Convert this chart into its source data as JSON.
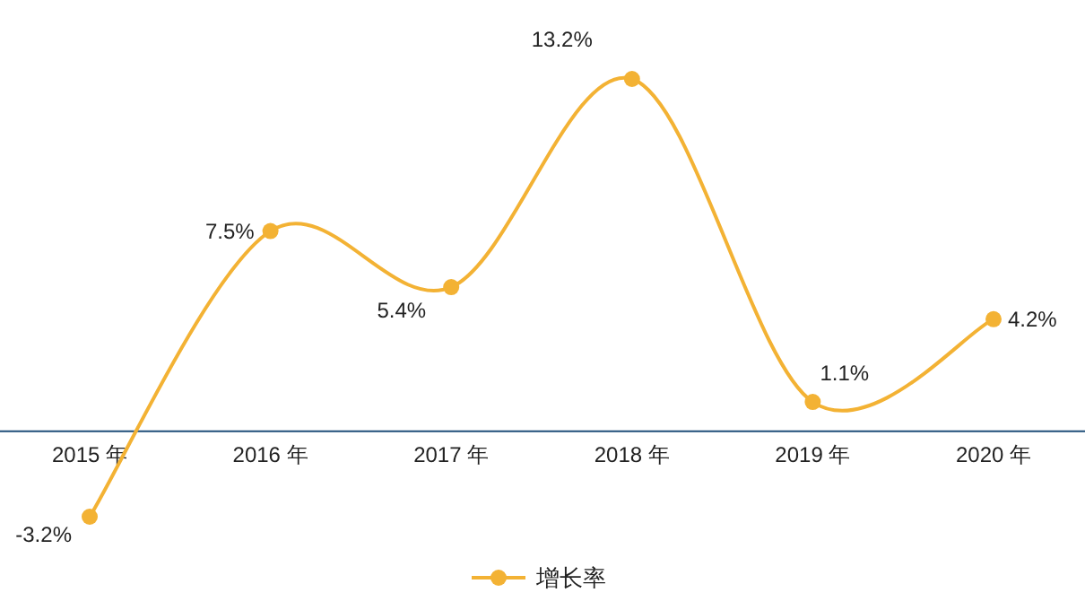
{
  "chart_data": {
    "type": "line",
    "categories": [
      "2015 年",
      "2016 年",
      "2017 年",
      "2018 年",
      "2019 年",
      "2020 年"
    ],
    "series": [
      {
        "name": "增长率",
        "color": "#f3b234",
        "values": [
          -3.2,
          7.5,
          5.4,
          13.2,
          1.1,
          4.2
        ],
        "value_labels": [
          "-3.2%",
          "7.5%",
          "5.4%",
          "13.2%",
          "1.1%",
          "4.2%"
        ]
      }
    ],
    "legend": "bottom",
    "marker": "circle",
    "line_style": "solid",
    "grid": false
  }
}
